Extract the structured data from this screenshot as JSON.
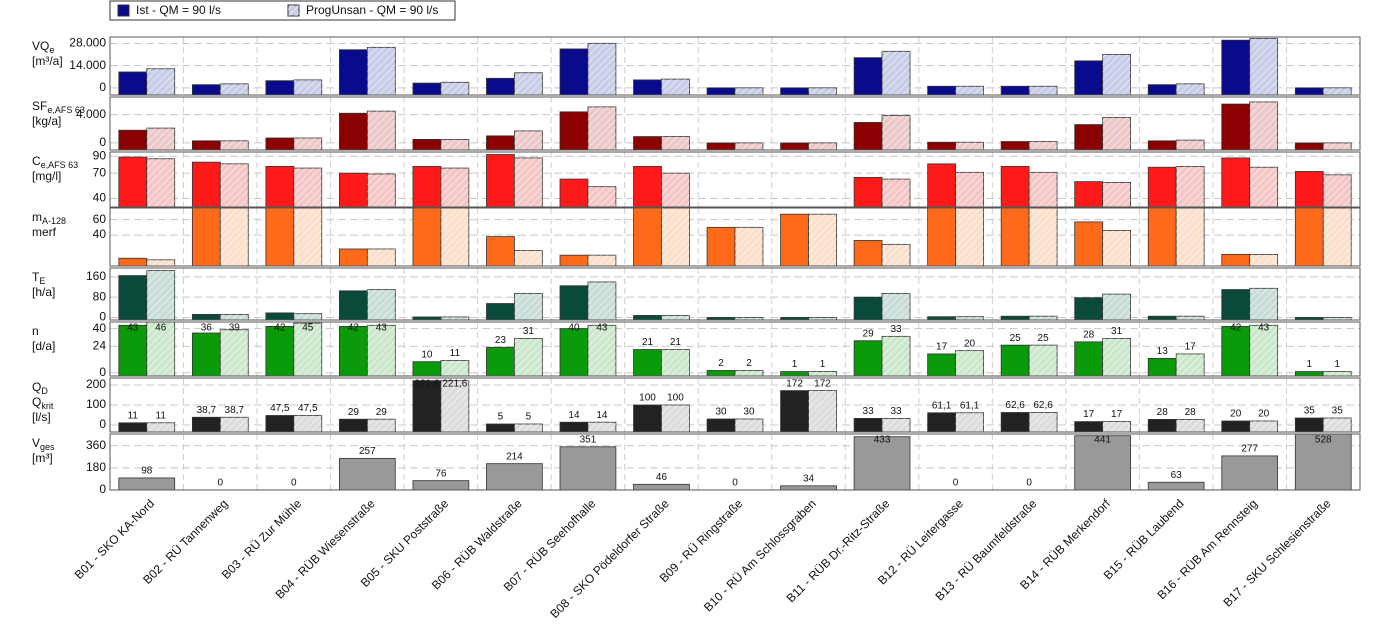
{
  "chart_data": [
    {
      "type": "bar",
      "ylabel": [
        {
          "text": "VQ",
          "sub": "e"
        },
        {
          "text": "[m³/a]"
        }
      ],
      "ylim": [
        -4500,
        32000
      ],
      "yticks": [
        0,
        {
          "value": 14000,
          "label": "14.000"
        },
        {
          "value": 28000,
          "label": "28.000"
        }
      ],
      "grid": true,
      "series": [
        {
          "name": "Ist - QM = 90 l/s",
          "color": "#0a0a8c",
          "values": [
            10000,
            2000,
            4500,
            24000,
            3000,
            6000,
            24500,
            5000,
            0,
            0,
            19000,
            1000,
            1000,
            17000,
            2000,
            30000,
            0
          ]
        },
        {
          "name": "ProgUnsan - QM = 90 l/s",
          "color": "#c8cde8",
          "hatch": true,
          "values": [
            12000,
            2500,
            5000,
            25500,
            3500,
            9500,
            28000,
            5500,
            0,
            0,
            23000,
            1000,
            1000,
            21000,
            2500,
            31000,
            0
          ]
        }
      ]
    },
    {
      "type": "bar",
      "ylabel": [
        {
          "text": "SF",
          "sub": "e,AFS 63"
        },
        {
          "text": "[kg/a]"
        }
      ],
      "ylim": [
        -1000,
        6500
      ],
      "yticks": [
        0,
        {
          "value": 4000,
          "label": "4.000"
        }
      ],
      "grid": true,
      "series": [
        {
          "color": "#8b0000",
          "values": [
            1800,
            300,
            700,
            4200,
            500,
            1000,
            4400,
            900,
            0,
            0,
            2900,
            100,
            200,
            2600,
            300,
            5500,
            0
          ]
        },
        {
          "color": "#ecc8c8",
          "hatch": true,
          "values": [
            2100,
            300,
            700,
            4500,
            500,
            1700,
            5100,
            900,
            0,
            0,
            3900,
            100,
            200,
            3600,
            400,
            5800,
            0
          ]
        }
      ]
    },
    {
      "type": "bar",
      "ylabel": [
        {
          "text": "C",
          "sub": "e,AFS 63"
        },
        {
          "text": "[mg/l]"
        }
      ],
      "ylim": [
        30,
        95
      ],
      "yticks": [
        40,
        70,
        90
      ],
      "grid": true,
      "series": [
        {
          "color": "#ff1a1a",
          "values": [
            89,
            83,
            78,
            70,
            78,
            92,
            63,
            78,
            null,
            null,
            65,
            81,
            78,
            60,
            77,
            88,
            72
          ]
        },
        {
          "color": "#f5c6c6",
          "hatch": true,
          "values": [
            87,
            81,
            76,
            69,
            76,
            88,
            54,
            70,
            null,
            null,
            63,
            71,
            71,
            59,
            78,
            77,
            68
          ]
        }
      ]
    },
    {
      "type": "bar",
      "ylabel": [
        {
          "text": "m",
          "sub": "A-128"
        },
        {
          "text": "merf"
        }
      ],
      "ylim": [
        0,
        75
      ],
      "yticks": [
        40,
        60
      ],
      "grid": true,
      "series": [
        {
          "color": "#ff6a1a",
          "values": [
            10,
            75,
            75,
            22,
            75,
            38,
            14,
            75,
            50,
            67,
            33,
            75,
            75,
            57,
            75,
            15,
            75
          ]
        },
        {
          "color": "#fbe0cc",
          "hatch": true,
          "values": [
            8,
            75,
            75,
            22,
            75,
            20,
            14,
            75,
            50,
            67,
            28,
            75,
            75,
            46,
            75,
            15,
            75
          ]
        }
      ]
    },
    {
      "type": "bar",
      "ylabel": [
        {
          "text": "T",
          "sub": "E"
        },
        {
          "text": "[h/a]"
        }
      ],
      "ylim": [
        -10,
        195
      ],
      "yticks": [
        0,
        80,
        160
      ],
      "grid": true,
      "series": [
        {
          "color": "#0a4a3a",
          "values": [
            165,
            12,
            18,
            105,
            2,
            55,
            125,
            8,
            0,
            0,
            80,
            3,
            5,
            78,
            5,
            110,
            0
          ]
        },
        {
          "color": "#c8dcd8",
          "hatch": true,
          "values": [
            185,
            12,
            15,
            110,
            2,
            95,
            140,
            8,
            0,
            0,
            95,
            3,
            5,
            92,
            5,
            115,
            0
          ]
        }
      ]
    },
    {
      "type": "bar",
      "ylabel": [
        {
          "text": "n"
        },
        {
          "text": "[d/a]"
        }
      ],
      "ylim": [
        -3,
        46
      ],
      "yticks": [
        0,
        24,
        40
      ],
      "grid": true,
      "data_labels": true,
      "series": [
        {
          "color": "#0a9a0a",
          "values": [
            43,
            36,
            42,
            42,
            10,
            23,
            40,
            21,
            2,
            1,
            29,
            17,
            25,
            28,
            13,
            42,
            1
          ]
        },
        {
          "color": "#cce8cc",
          "hatch": true,
          "values": [
            46,
            39,
            45,
            43,
            11,
            31,
            43,
            21,
            2,
            1,
            33,
            20,
            25,
            31,
            17,
            43,
            1
          ]
        }
      ]
    },
    {
      "type": "bar",
      "ylabel": [
        {
          "text": "Q",
          "sub": "D"
        },
        {
          "text": "Q",
          "sub": "krit"
        },
        {
          "text": "[l/s]"
        }
      ],
      "ylim": [
        -35,
        235
      ],
      "yticks": [
        0,
        100,
        200
      ],
      "grid": true,
      "data_labels": true,
      "series": [
        {
          "color": "#222222",
          "values": [
            11,
            38.7,
            47.5,
            29,
            221.6,
            5,
            14,
            100,
            30,
            172,
            33,
            61.1,
            62.6,
            17,
            28,
            20,
            35
          ],
          "value_labels": [
            "11",
            "38,7",
            "47,5",
            "29",
            "221,6",
            "5",
            "14",
            "100",
            "30",
            "172",
            "33",
            "61,1",
            "62,6",
            "17",
            "28",
            "20",
            "35"
          ]
        },
        {
          "color": "#dddddd",
          "hatch": true,
          "values": [
            11,
            38.7,
            47.5,
            29,
            221.6,
            5,
            14,
            100,
            30,
            172,
            33,
            61.1,
            62.6,
            17,
            28,
            20,
            35
          ],
          "value_labels": [
            "11",
            "38,7",
            "47,5",
            "29",
            "221,6",
            "5",
            "14",
            "100",
            "30",
            "172",
            "33",
            "61,1",
            "62,6",
            "17",
            "28",
            "20",
            "35"
          ]
        }
      ]
    },
    {
      "type": "bar",
      "ylabel": [
        {
          "text": "V",
          "sub": "ges"
        },
        {
          "text": "[m³]"
        }
      ],
      "ylim": [
        0,
        455
      ],
      "yticks": [
        0,
        180,
        360
      ],
      "grid": true,
      "data_labels": true,
      "categories": [
        "B01 - SKO KA-Nord",
        "B02 - RÜ Tannenweg",
        "B03 - RÜ Zur Mühle",
        "B04 - RÜB Wiesenstraße",
        "B05 - SKU Poststraße",
        "B06 - RÜB Waldstraße",
        "B07 - RÜB Seehofhalle",
        "B08 - SKO Pödeldorfer Straße",
        "B09 - RÜ Ringstraße",
        "B10 - RÜ Am Schlossgraben",
        "B11 - RÜB Dr.-Ritz-Straße",
        "B12 - RÜ Leitergasse",
        "B13 - RÜ Baumfeldstraße",
        "B14 - RÜB Merkendorf",
        "B15 - RÜB Laubend",
        "B16 - RÜB Am Rennsteig",
        "B17 - SKU Schlesienstraße"
      ],
      "series": [
        {
          "color": "#999999",
          "values": [
            98,
            0,
            0,
            257,
            76,
            214,
            351,
            46,
            0,
            34,
            433,
            0,
            0,
            441,
            63,
            277,
            528
          ]
        }
      ]
    }
  ]
}
